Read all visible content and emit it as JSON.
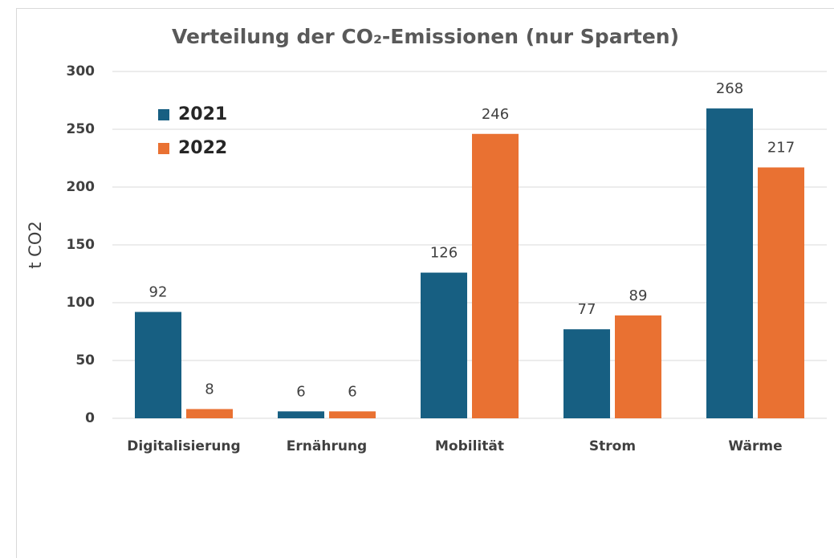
{
  "chart_data": {
    "type": "bar",
    "title": "Verteilung der CO₂-Emissionen (nur Sparten)",
    "y_label": "t CO2",
    "categories": [
      "Digitalisierung",
      "Ernährung",
      "Mobilität",
      "Strom",
      "Wärme"
    ],
    "series": [
      {
        "name": "2021",
        "color": "#175f82",
        "values": [
          92,
          6,
          126,
          77,
          268
        ]
      },
      {
        "name": "2022",
        "color": "#e97132",
        "values": [
          8,
          6,
          246,
          89,
          217
        ]
      }
    ],
    "ylim": [
      0,
      300
    ],
    "yticks": [
      0,
      50,
      100,
      150,
      200,
      250,
      300
    ],
    "grid": true,
    "legend": "top-left"
  }
}
